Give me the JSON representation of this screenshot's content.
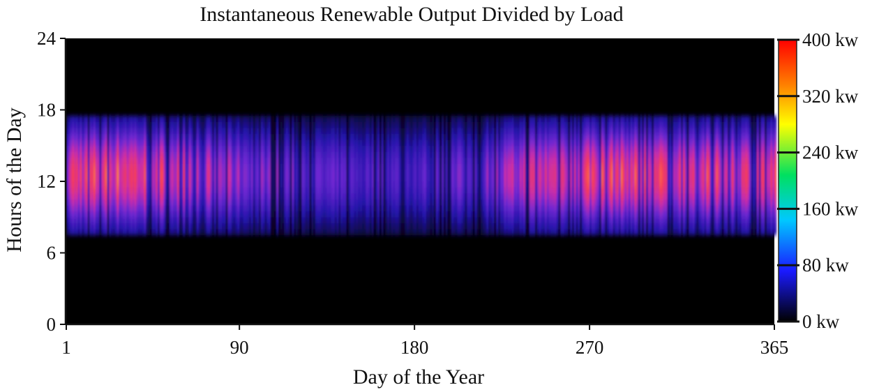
{
  "chart_data": {
    "type": "heatmap",
    "title": "Instantaneous Renewable Output Divided by Load",
    "xlabel": "Day of the Year",
    "ylabel": "Hours of the Day",
    "xlim": [
      1,
      365
    ],
    "ylim": [
      0,
      24
    ],
    "x_ticks": [
      1,
      90,
      180,
      270,
      365
    ],
    "y_ticks": [
      0,
      6,
      12,
      18,
      24
    ],
    "colorbar": {
      "min": 0,
      "max": 400,
      "tick_values": [
        0,
        80,
        160,
        240,
        320,
        400
      ],
      "tick_labels": [
        "0 kw",
        "80 kw",
        "160 kw",
        "240 kw",
        "320 kw",
        "400 kw"
      ],
      "colors": [
        "#000000",
        "#1a1aff",
        "#00c8ff",
        "#00e060",
        "#ffff00",
        "#ff8000",
        "#ff0000"
      ]
    },
    "grid": false,
    "output_window_hours": [
      7.5,
      17.5
    ],
    "peak_hour": 12.5,
    "typical_daily_peak_kw_by_day": {
      "days": [
        1,
        30,
        60,
        90,
        120,
        150,
        180,
        210,
        240,
        270,
        300,
        330,
        365
      ],
      "values": [
        300,
        320,
        270,
        210,
        170,
        150,
        150,
        180,
        260,
        310,
        300,
        290,
        280
      ]
    }
  }
}
